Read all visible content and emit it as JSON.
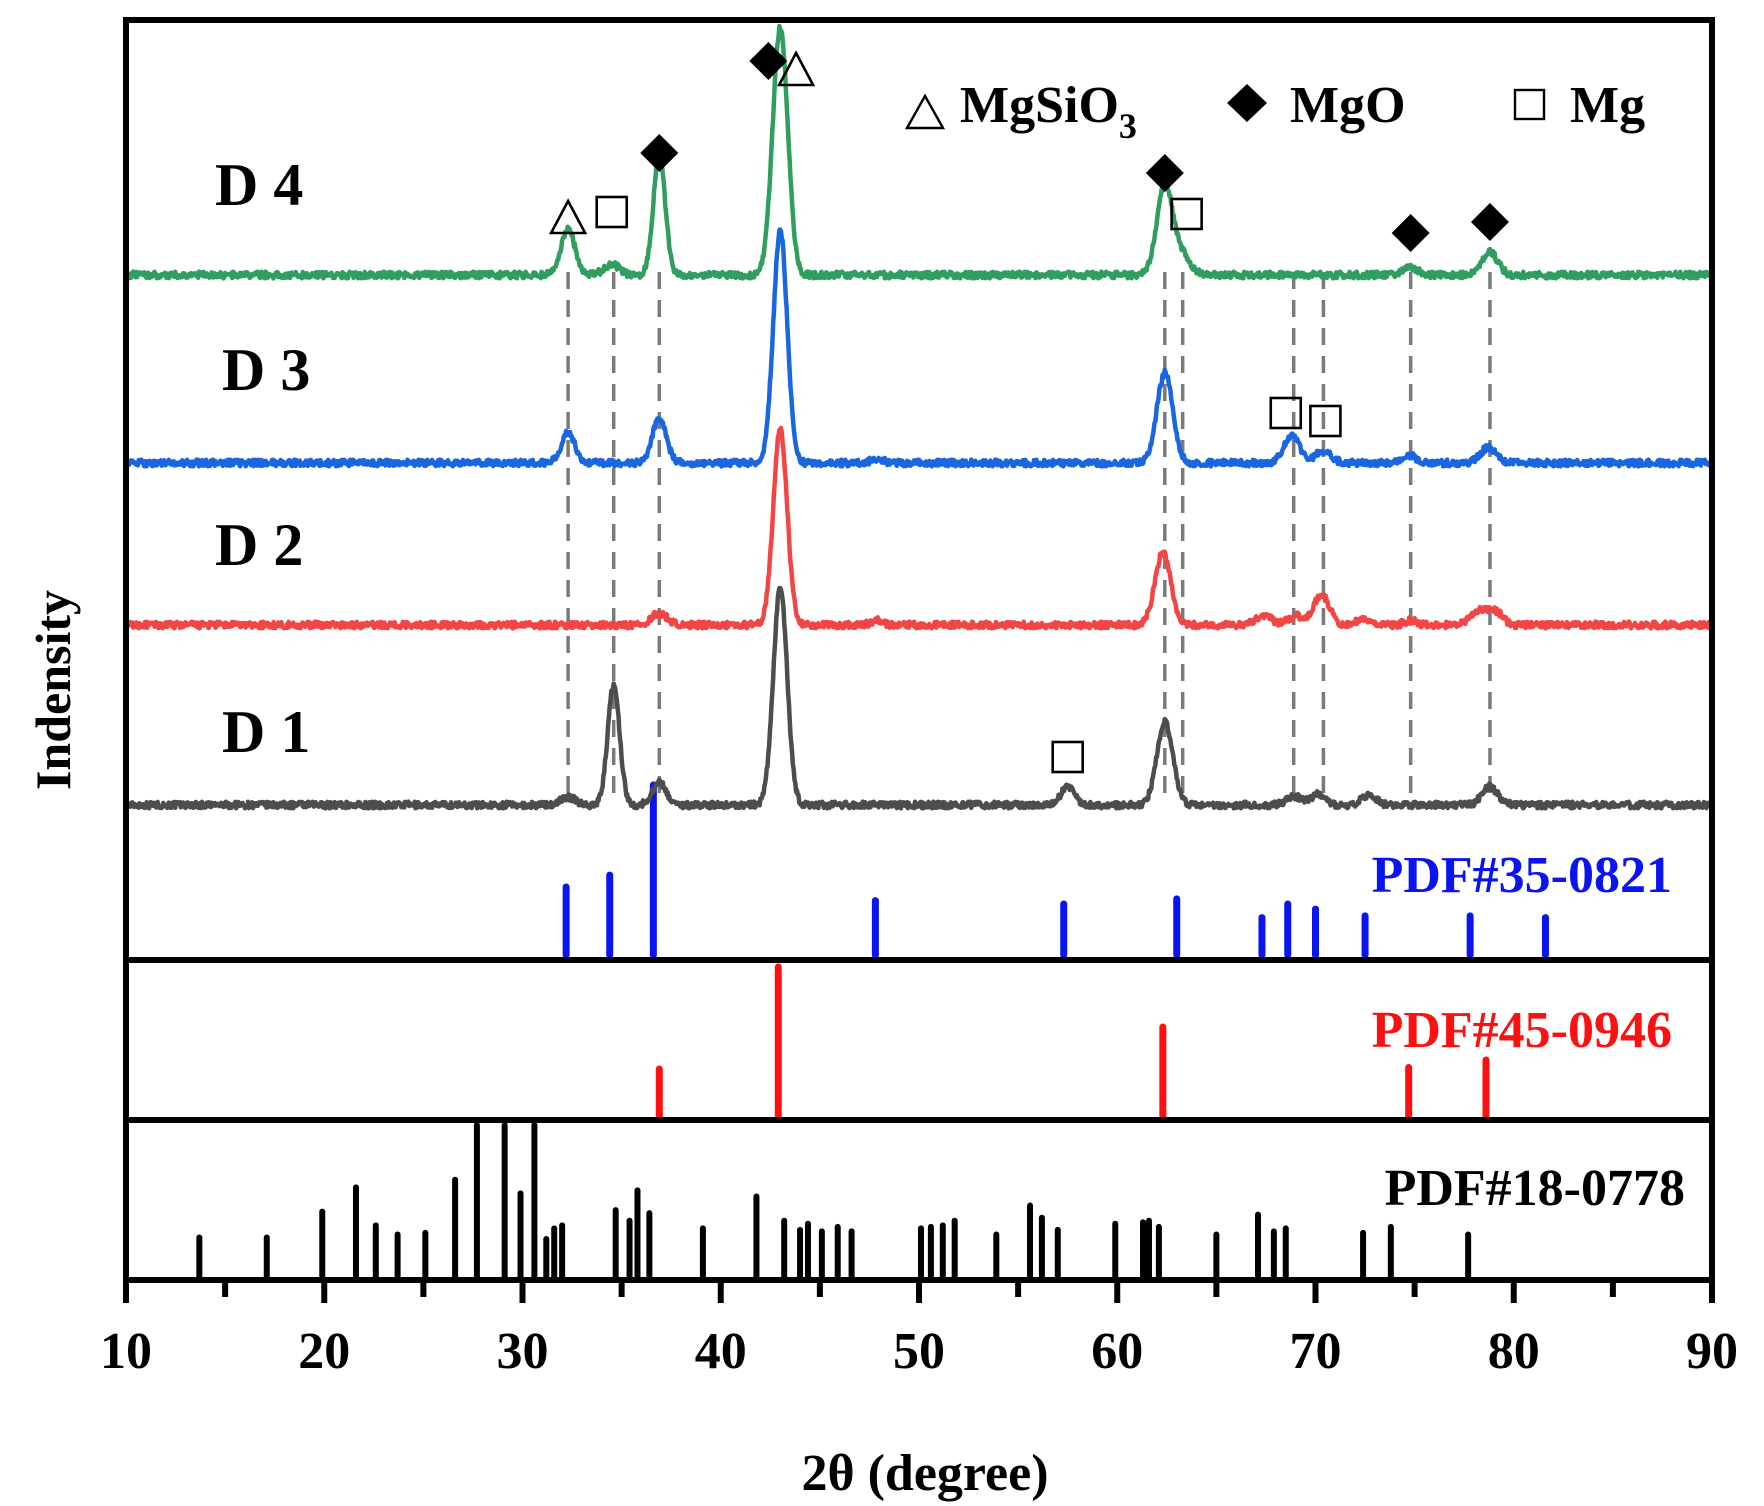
{
  "chart_data": {
    "type": "line",
    "title": "",
    "xlabel": "2θ (degree)",
    "ylabel": "Indensity",
    "xlim": [
      10,
      90
    ],
    "xticks": [
      "10",
      "20",
      "30",
      "40",
      "50",
      "60",
      "70",
      "80",
      "90"
    ],
    "legend": {
      "placement": "top-right",
      "entries": [
        {
          "symbol": "triangle",
          "label": "MgSiO",
          "sub": "3"
        },
        {
          "symbol": "diamond",
          "label": "MgO"
        },
        {
          "symbol": "square",
          "label": "Mg"
        }
      ]
    },
    "series": [
      {
        "name": "D 1",
        "color": "#4d4d4d",
        "peaks": [
          [
            32.3,
            0.05,
            0.4
          ],
          [
            34.6,
            0.8,
            0.3
          ],
          [
            36.9,
            0.15,
            0.35
          ],
          [
            43.0,
            1.45,
            0.35
          ],
          [
            57.5,
            0.12,
            0.35
          ],
          [
            62.4,
            0.55,
            0.4
          ],
          [
            68.9,
            0.06,
            0.35
          ],
          [
            70.1,
            0.07,
            0.35
          ],
          [
            72.7,
            0.07,
            0.35
          ],
          [
            78.8,
            0.12,
            0.4
          ]
        ]
      },
      {
        "name": "D 2",
        "color": "#f24545",
        "peaks": [
          [
            36.9,
            0.08,
            0.4
          ],
          [
            43.0,
            1.3,
            0.35
          ],
          [
            47.9,
            0.03,
            0.3
          ],
          [
            62.3,
            0.48,
            0.4
          ],
          [
            67.4,
            0.06,
            0.4
          ],
          [
            69.0,
            0.06,
            0.4
          ],
          [
            70.3,
            0.2,
            0.4
          ],
          [
            72.5,
            0.04,
            0.4
          ],
          [
            74.8,
            0.03,
            0.3
          ],
          [
            78.4,
            0.1,
            0.5
          ],
          [
            79.2,
            0.06,
            0.3
          ]
        ]
      },
      {
        "name": "D 3",
        "color": "#1a66e0",
        "peaks": [
          [
            32.3,
            0.2,
            0.35
          ],
          [
            36.9,
            0.3,
            0.35
          ],
          [
            43.0,
            1.55,
            0.35
          ],
          [
            47.9,
            0.03,
            0.3
          ],
          [
            62.4,
            0.6,
            0.4
          ],
          [
            68.8,
            0.18,
            0.4
          ],
          [
            70.4,
            0.08,
            0.4
          ],
          [
            74.8,
            0.05,
            0.3
          ],
          [
            78.7,
            0.1,
            0.4
          ]
        ]
      },
      {
        "name": "D 4",
        "color": "#2f9e5e",
        "peaks": [
          [
            32.3,
            0.3,
            0.35
          ],
          [
            34.5,
            0.07,
            0.4
          ],
          [
            36.9,
            0.8,
            0.3
          ],
          [
            43.0,
            1.65,
            0.38
          ],
          [
            62.4,
            0.6,
            0.4
          ],
          [
            63.3,
            0.12,
            0.4
          ],
          [
            74.8,
            0.05,
            0.35
          ],
          [
            78.8,
            0.15,
            0.4
          ]
        ]
      }
    ],
    "guide_lines_2theta": [
      32.3,
      34.6,
      36.9,
      62.4,
      63.3,
      68.9,
      70.4,
      74.8,
      78.8
    ],
    "peak_markers": [
      {
        "series": "D 4",
        "markers": [
          {
            "symbol": "triangle",
            "x": 32.3
          },
          {
            "symbol": "square",
            "x": 34.5
          },
          {
            "symbol": "diamond",
            "x": 36.9
          },
          {
            "symbol": "diamond",
            "x": 42.4
          },
          {
            "symbol": "triangle",
            "x": 43.8
          },
          {
            "symbol": "diamond",
            "x": 62.4
          },
          {
            "symbol": "square",
            "x": 63.5
          },
          {
            "symbol": "diamond",
            "x": 74.8
          },
          {
            "symbol": "diamond",
            "x": 78.8
          }
        ]
      },
      {
        "series": "D 3",
        "markers": [
          {
            "symbol": "square",
            "x": 68.5
          },
          {
            "symbol": "square",
            "x": 70.5
          }
        ]
      },
      {
        "series": "D 1",
        "markers": [
          {
            "symbol": "square",
            "x": 57.5
          }
        ]
      }
    ],
    "reference_patterns": [
      {
        "name": "PDF#35-0821",
        "color": "#0a14f0",
        "lines": [
          [
            32.2,
            0.4
          ],
          [
            34.4,
            0.47
          ],
          [
            36.6,
            1.0
          ],
          [
            47.8,
            0.32
          ],
          [
            57.3,
            0.3
          ],
          [
            63.0,
            0.33
          ],
          [
            67.3,
            0.22
          ],
          [
            68.6,
            0.3
          ],
          [
            70.0,
            0.27
          ],
          [
            72.5,
            0.23
          ],
          [
            77.8,
            0.23
          ],
          [
            81.6,
            0.22
          ]
        ]
      },
      {
        "name": "PDF#45-0946",
        "color": "#ff1010",
        "lines": [
          [
            36.9,
            0.32
          ],
          [
            42.9,
            1.0
          ],
          [
            62.3,
            0.6
          ],
          [
            74.7,
            0.33
          ],
          [
            78.6,
            0.38
          ]
        ]
      },
      {
        "name": "PDF#18-0778",
        "color": "#000000",
        "lines": [
          [
            13.7,
            0.26
          ],
          [
            17.1,
            0.26
          ],
          [
            19.9,
            0.43
          ],
          [
            21.6,
            0.59
          ],
          [
            22.6,
            0.34
          ],
          [
            23.7,
            0.28
          ],
          [
            25.1,
            0.29
          ],
          [
            26.6,
            0.64
          ],
          [
            27.7,
            1.0
          ],
          [
            29.1,
            1.0
          ],
          [
            29.9,
            0.55
          ],
          [
            30.6,
            1.0
          ],
          [
            31.2,
            0.25
          ],
          [
            31.6,
            0.32
          ],
          [
            32.0,
            0.34
          ],
          [
            34.7,
            0.44
          ],
          [
            35.4,
            0.37
          ],
          [
            35.8,
            0.57
          ],
          [
            36.4,
            0.42
          ],
          [
            39.1,
            0.32
          ],
          [
            41.8,
            0.53
          ],
          [
            43.2,
            0.37
          ],
          [
            44.0,
            0.31
          ],
          [
            44.4,
            0.35
          ],
          [
            45.1,
            0.3
          ],
          [
            45.9,
            0.33
          ],
          [
            46.6,
            0.3
          ],
          [
            50.1,
            0.32
          ],
          [
            50.6,
            0.33
          ],
          [
            51.2,
            0.34
          ],
          [
            51.8,
            0.37
          ],
          [
            53.9,
            0.28
          ],
          [
            55.6,
            0.47
          ],
          [
            56.2,
            0.39
          ],
          [
            57.0,
            0.31
          ],
          [
            59.9,
            0.35
          ],
          [
            61.3,
            0.36
          ],
          [
            61.6,
            0.37
          ],
          [
            62.1,
            0.33
          ],
          [
            65.0,
            0.28
          ],
          [
            67.1,
            0.41
          ],
          [
            67.9,
            0.3
          ],
          [
            68.5,
            0.32
          ],
          [
            72.4,
            0.29
          ],
          [
            73.8,
            0.33
          ],
          [
            77.7,
            0.28
          ]
        ]
      }
    ]
  }
}
